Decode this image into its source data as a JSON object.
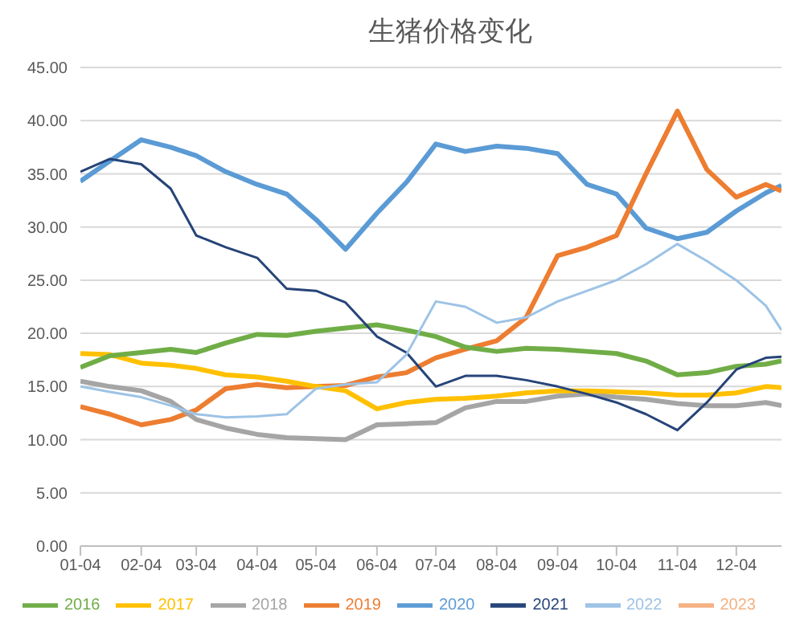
{
  "chart_data": {
    "type": "line",
    "title": "生猪价格变化",
    "x": [
      "--01-04",
      "--01-19",
      "--02-04",
      "--02-19",
      "--03-04",
      "--03-19",
      "--04-04",
      "--04-19",
      "--05-04",
      "--05-19",
      "--06-04",
      "--06-19",
      "--07-04",
      "--07-19",
      "--08-04",
      "--08-19",
      "--09-04",
      "--09-19",
      "--10-04",
      "--10-19",
      "--11-04",
      "--11-19",
      "--12-04",
      "--12-19",
      "--12-27"
    ],
    "xlim": [
      "--01-04",
      "--12-27"
    ],
    "xticks": [
      {
        "value": "--01-04",
        "label": "01-04"
      },
      {
        "value": "--02-04",
        "label": "02-04"
      },
      {
        "value": "--03-04",
        "label": "03-04"
      },
      {
        "value": "--04-04",
        "label": "04-04"
      },
      {
        "value": "--05-04",
        "label": "05-04"
      },
      {
        "value": "--06-04",
        "label": "06-04"
      },
      {
        "value": "--07-04",
        "label": "07-04"
      },
      {
        "value": "--08-04",
        "label": "08-04"
      },
      {
        "value": "--09-04",
        "label": "09-04"
      },
      {
        "value": "--10-04",
        "label": "10-04"
      },
      {
        "value": "--11-04",
        "label": "11-04"
      },
      {
        "value": "--12-04",
        "label": "12-04"
      }
    ],
    "ylim": [
      0,
      45
    ],
    "yticks": [
      {
        "value": 0,
        "label": "0.00"
      },
      {
        "value": 5,
        "label": "5.00"
      },
      {
        "value": 10,
        "label": "10.00"
      },
      {
        "value": 15,
        "label": "15.00"
      },
      {
        "value": 20,
        "label": "20.00"
      },
      {
        "value": 25,
        "label": "25.00"
      },
      {
        "value": 30,
        "label": "30.00"
      },
      {
        "value": 35,
        "label": "35.00"
      },
      {
        "value": 40,
        "label": "40.00"
      },
      {
        "value": 45,
        "label": "45.00"
      }
    ],
    "grid": "y",
    "legend": "bottom",
    "marker": "none",
    "series": [
      {
        "name": "2020",
        "color": "#5b9bd5",
        "values": [
          34.3,
          36.2,
          38.2,
          37.5,
          36.7,
          35.2,
          34.0,
          33.1,
          30.7,
          27.9,
          31.3,
          34.2,
          37.8,
          37.1,
          37.6,
          37.4,
          36.9,
          34.0,
          33.1,
          29.9,
          28.9,
          29.5,
          31.5,
          33.2,
          33.9
        ]
      },
      {
        "name": "2019",
        "color": "#ed7d31",
        "values": [
          13.1,
          12.4,
          11.4,
          11.9,
          12.8,
          14.8,
          15.2,
          14.9,
          15.0,
          15.1,
          15.9,
          16.3,
          17.7,
          18.5,
          19.3,
          21.5,
          27.3,
          28.1,
          29.2,
          35.0,
          40.9,
          35.4,
          32.8,
          34.0,
          33.4
        ]
      },
      {
        "name": "2018",
        "color": "#a5a5a5",
        "values": [
          15.5,
          15.0,
          14.6,
          13.6,
          11.9,
          11.1,
          10.5,
          10.2,
          10.1,
          10.0,
          11.4,
          11.5,
          11.6,
          13.0,
          13.6,
          13.6,
          14.1,
          14.3,
          14.0,
          13.8,
          13.4,
          13.2,
          13.2,
          13.5,
          13.2
        ]
      },
      {
        "name": "2017",
        "color": "#ffc000",
        "values": [
          18.1,
          18.0,
          17.2,
          17.0,
          16.7,
          16.1,
          15.9,
          15.5,
          15.0,
          14.6,
          12.9,
          13.5,
          13.8,
          13.9,
          14.1,
          14.4,
          14.6,
          14.6,
          14.5,
          14.4,
          14.2,
          14.2,
          14.4,
          15.0,
          14.9
        ]
      },
      {
        "name": "2016",
        "color": "#70ad47",
        "values": [
          16.8,
          17.9,
          18.2,
          18.5,
          18.2,
          19.1,
          19.9,
          19.8,
          20.2,
          20.5,
          20.8,
          20.3,
          19.7,
          18.7,
          18.3,
          18.6,
          18.5,
          18.3,
          18.1,
          17.4,
          16.1,
          16.3,
          16.9,
          17.1,
          17.4
        ]
      },
      {
        "name": "2021",
        "color": "#264478",
        "values": [
          35.2,
          36.4,
          35.9,
          33.6,
          29.2,
          28.1,
          27.1,
          24.2,
          24.0,
          22.9,
          19.7,
          18.2,
          15.0,
          16.0,
          16.0,
          15.6,
          15.0,
          14.3,
          13.5,
          12.4,
          10.9,
          13.5,
          16.6,
          17.7,
          17.8
        ]
      },
      {
        "name": "2022",
        "color": "#9dc3e6",
        "values": [
          15.0,
          14.5,
          14.0,
          13.2,
          12.4,
          12.1,
          12.2,
          12.4,
          14.8,
          15.2,
          15.4,
          18.0,
          23.0,
          22.5,
          21.0,
          21.5,
          23.0,
          24.0,
          25.0,
          26.5,
          28.4,
          26.8,
          25.0,
          22.6,
          20.3
        ]
      },
      {
        "name": "2023",
        "color": "#f4b183",
        "values": [
          null,
          null,
          null,
          null,
          null,
          null,
          null,
          null,
          null,
          null,
          null,
          null,
          null,
          null,
          null,
          null,
          null,
          null,
          null,
          null,
          null,
          null,
          null,
          null,
          null
        ]
      }
    ]
  }
}
